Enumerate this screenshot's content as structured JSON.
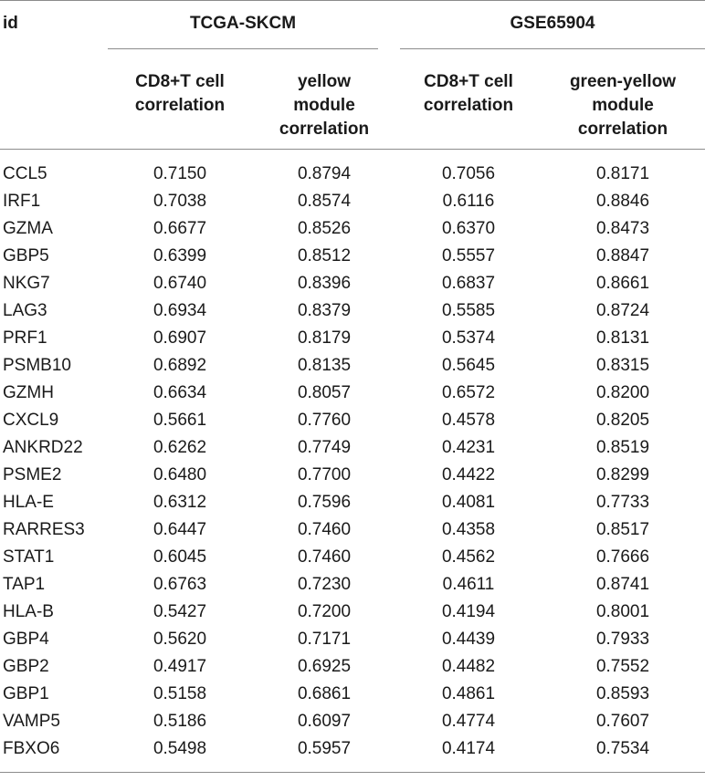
{
  "table": {
    "id_header": "id",
    "groups": [
      "TCGA-SKCM",
      "GSE65904"
    ],
    "subheaders": [
      [
        "CD8+T cell",
        "correlation"
      ],
      [
        "yellow",
        "module",
        "correlation"
      ],
      [
        "CD8+T cell",
        "correlation"
      ],
      [
        "green-yellow",
        "module",
        "correlation"
      ]
    ],
    "rows": [
      [
        "CCL5",
        "0.7150",
        "0.8794",
        "0.7056",
        "0.8171"
      ],
      [
        "IRF1",
        "0.7038",
        "0.8574",
        "0.6116",
        "0.8846"
      ],
      [
        "GZMA",
        "0.6677",
        "0.8526",
        "0.6370",
        "0.8473"
      ],
      [
        "GBP5",
        "0.6399",
        "0.8512",
        "0.5557",
        "0.8847"
      ],
      [
        "NKG7",
        "0.6740",
        "0.8396",
        "0.6837",
        "0.8661"
      ],
      [
        "LAG3",
        "0.6934",
        "0.8379",
        "0.5585",
        "0.8724"
      ],
      [
        "PRF1",
        "0.6907",
        "0.8179",
        "0.5374",
        "0.8131"
      ],
      [
        "PSMB10",
        "0.6892",
        "0.8135",
        "0.5645",
        "0.8315"
      ],
      [
        "GZMH",
        "0.6634",
        "0.8057",
        "0.6572",
        "0.8200"
      ],
      [
        "CXCL9",
        "0.5661",
        "0.7760",
        "0.4578",
        "0.8205"
      ],
      [
        "ANKRD22",
        "0.6262",
        "0.7749",
        "0.4231",
        "0.8519"
      ],
      [
        "PSME2",
        "0.6480",
        "0.7700",
        "0.4422",
        "0.8299"
      ],
      [
        "HLA-E",
        "0.6312",
        "0.7596",
        "0.4081",
        "0.7733"
      ],
      [
        "RARRES3",
        "0.6447",
        "0.7460",
        "0.4358",
        "0.8517"
      ],
      [
        "STAT1",
        "0.6045",
        "0.7460",
        "0.4562",
        "0.7666"
      ],
      [
        "TAP1",
        "0.6763",
        "0.7230",
        "0.4611",
        "0.8741"
      ],
      [
        "HLA-B",
        "0.5427",
        "0.7200",
        "0.4194",
        "0.8001"
      ],
      [
        "GBP4",
        "0.5620",
        "0.7171",
        "0.4439",
        "0.7933"
      ],
      [
        "GBP2",
        "0.4917",
        "0.6925",
        "0.4482",
        "0.7552"
      ],
      [
        "GBP1",
        "0.5158",
        "0.6861",
        "0.4861",
        "0.8593"
      ],
      [
        "VAMP5",
        "0.5186",
        "0.6097",
        "0.4774",
        "0.7607"
      ],
      [
        "FBXO6",
        "0.5498",
        "0.5957",
        "0.4174",
        "0.7534"
      ]
    ]
  }
}
